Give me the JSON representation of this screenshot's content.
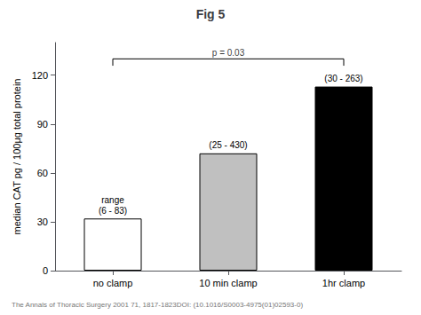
{
  "chart_data": {
    "type": "bar",
    "title": "Fig 5",
    "categories": [
      "no clamp",
      "10 min clamp",
      "1hr clamp"
    ],
    "values": [
      32,
      72,
      113
    ],
    "colors": [
      "white",
      "#c0c0c0",
      "black"
    ],
    "range_labels": [
      [
        "range",
        "(6 - 83)"
      ],
      [
        "(25 - 430)"
      ],
      [
        "(30 - 263)"
      ]
    ],
    "significance": {
      "text": "p = 0.03",
      "from": "no clamp",
      "to": "1hr clamp",
      "y": 130
    },
    "ylabel": "median CAT pg / 100μg total protein",
    "ylim": [
      0,
      140
    ],
    "yticks": [
      0,
      30,
      60,
      90,
      120
    ],
    "grid": false,
    "footer": "The Annals of Thoracic Surgery 2001 71, 1817-1823DOI: (10.1016/S0003-4975(01)02593-0)"
  }
}
